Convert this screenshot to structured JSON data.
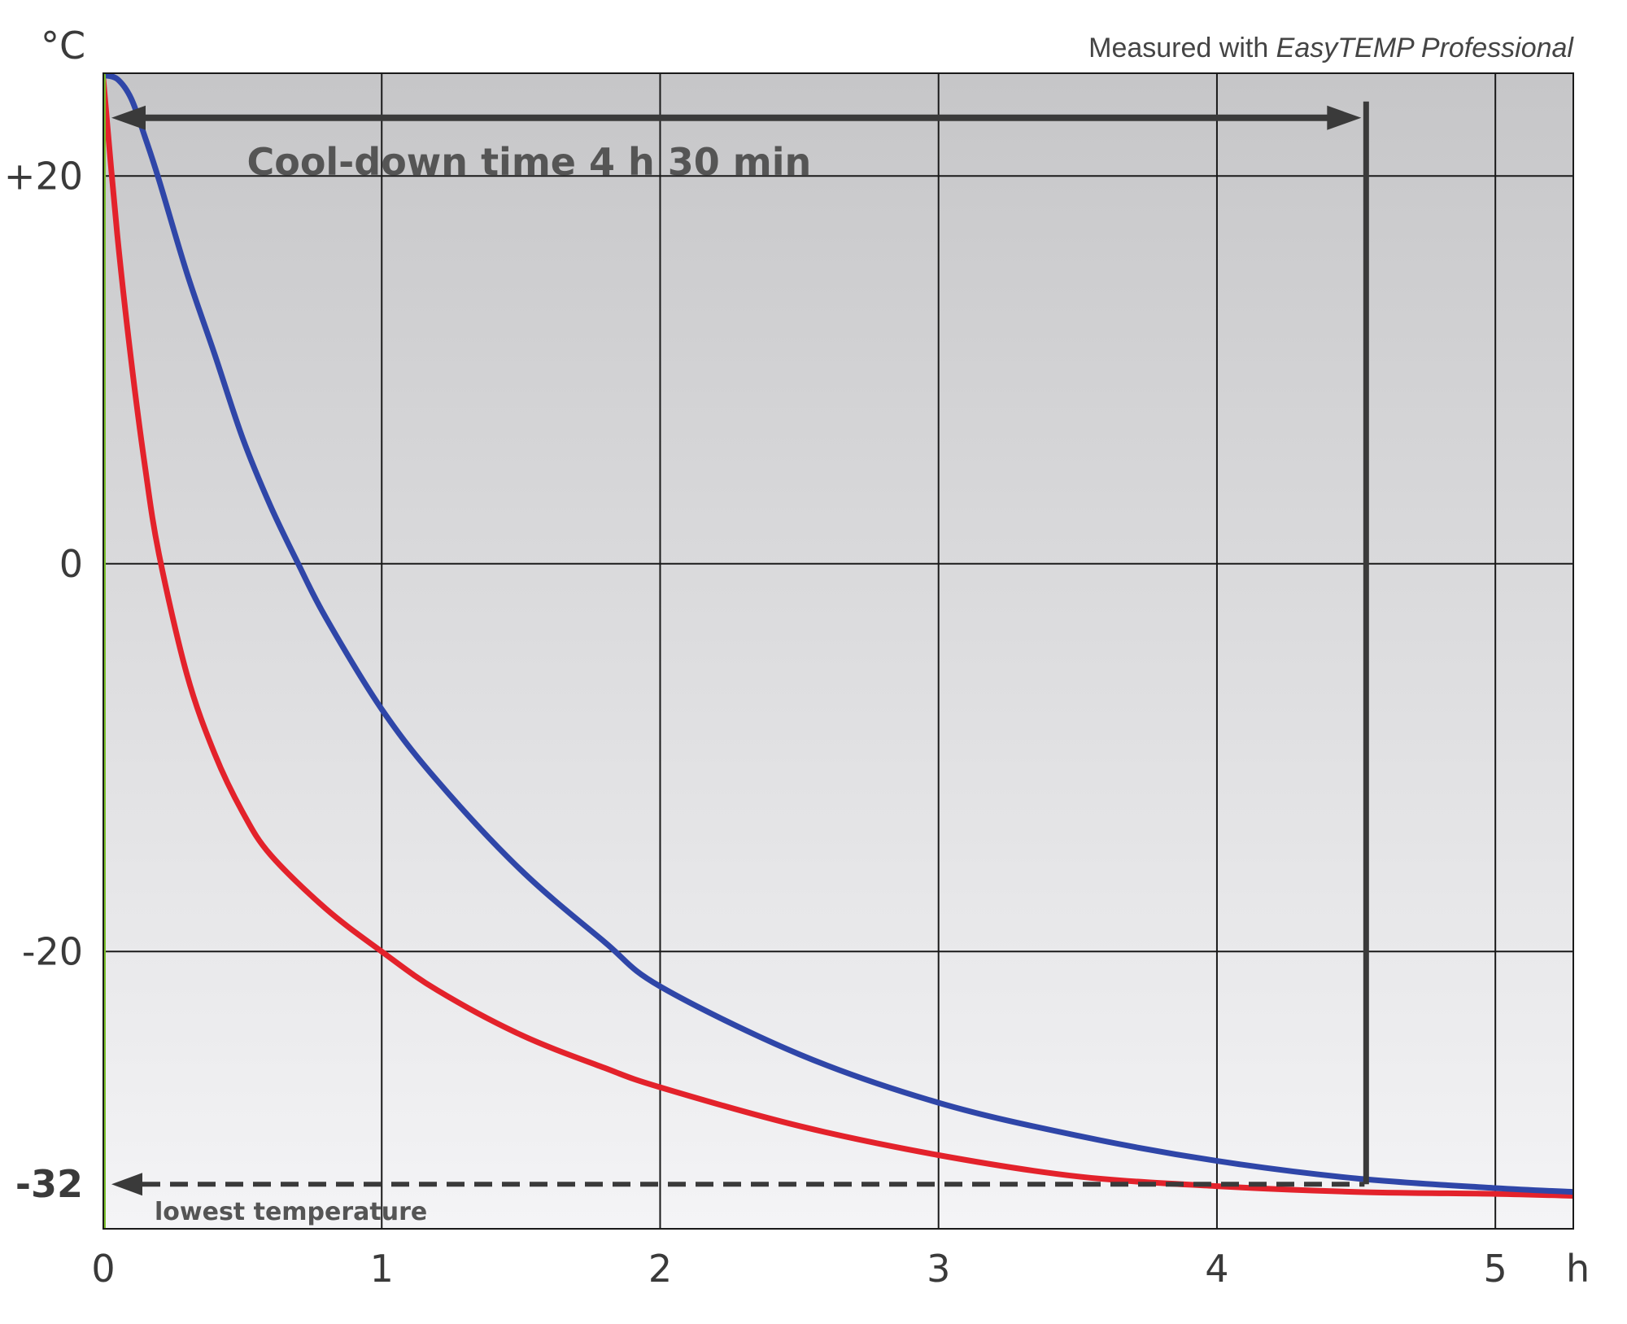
{
  "chart_data": {
    "type": "line",
    "title": "",
    "xlabel": "h",
    "ylabel": "°C",
    "xlim": [
      0,
      5.28
    ],
    "ylim": [
      -34.3,
      25.3
    ],
    "grid": true,
    "x_ticks": [
      {
        "value": 0,
        "label": "0"
      },
      {
        "value": 1,
        "label": "1"
      },
      {
        "value": 2,
        "label": "2"
      },
      {
        "value": 3,
        "label": "3"
      },
      {
        "value": 4,
        "label": "4"
      },
      {
        "value": 5,
        "label": "5"
      }
    ],
    "y_ticks": [
      {
        "value": 20,
        "label": "+20",
        "bold": false
      },
      {
        "value": 0,
        "label": "0",
        "bold": false
      },
      {
        "value": -20,
        "label": "-20",
        "bold": false
      },
      {
        "value": -32,
        "label": "-32",
        "bold": true
      }
    ],
    "series": [
      {
        "color": "#e3222b",
        "x": [
          0,
          0.05,
          0.1,
          0.15,
          0.2,
          0.3,
          0.4,
          0.5,
          0.6,
          0.8,
          1.0,
          1.2,
          1.5,
          1.8,
          2.0,
          2.5,
          3.0,
          3.5,
          4.0,
          4.5,
          5.0,
          5.28
        ],
        "y": [
          25.0,
          17.0,
          10.5,
          5.0,
          0.5,
          -5.7,
          -9.8,
          -12.8,
          -15.0,
          -17.8,
          -20.0,
          -22.0,
          -24.3,
          -26.0,
          -27.0,
          -29.0,
          -30.5,
          -31.6,
          -32.1,
          -32.4,
          -32.5,
          -32.6
        ]
      },
      {
        "color": "#2f46a8",
        "x": [
          0,
          0.05,
          0.1,
          0.15,
          0.2,
          0.3,
          0.4,
          0.5,
          0.6,
          0.7,
          0.8,
          1.0,
          1.2,
          1.5,
          1.8,
          2.0,
          2.5,
          3.0,
          3.5,
          4.0,
          4.5,
          5.0,
          5.28
        ],
        "y": [
          25.2,
          25.0,
          24.0,
          22.0,
          19.8,
          15.0,
          10.8,
          6.5,
          3.0,
          0.0,
          -2.8,
          -7.5,
          -11.2,
          -15.8,
          -19.5,
          -21.8,
          -25.3,
          -27.8,
          -29.5,
          -30.8,
          -31.7,
          -32.2,
          -32.4
        ]
      },
      {
        "color": "#7bbf2a",
        "x": [
          0,
          0
        ],
        "y": [
          25.2,
          -34.3
        ]
      }
    ],
    "annotations": {
      "unit_y": "°C",
      "unit_x": "h",
      "measured_prefix": "Measured with ",
      "measured_product": "EasyTEMP Professional",
      "cooldown_label": "Cool-down time 4 h 30 min",
      "cooldown_start_x": 0,
      "cooldown_end_x": 4.53,
      "cooldown_arrow_y": 23.0,
      "lowest_label": "lowest temperature",
      "lowest_value": -32
    }
  },
  "colors": {
    "plot_bg_top": "#c6c6c8",
    "plot_bg_bottom": "#f4f4f6",
    "grid": "#1a1a1a",
    "annotation": "#3a3a3a"
  }
}
